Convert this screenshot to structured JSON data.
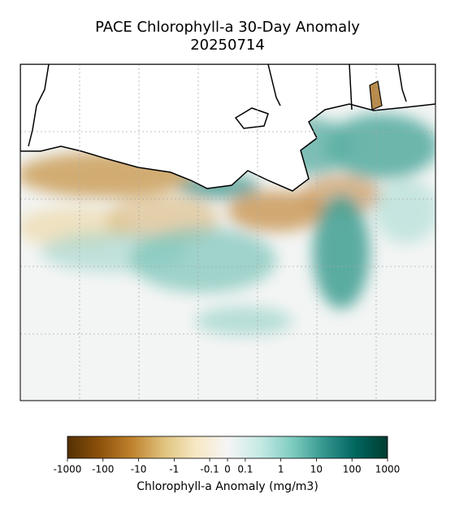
{
  "title": "PACE Chlorophyll-a 30-Day Anomaly",
  "date": "20250714",
  "colorbar": {
    "label": "Chlorophyll-a Anomaly (mg/m3)",
    "scale": "symlog",
    "lim": [
      -1000,
      1000
    ],
    "ticks": [
      -1000,
      -100,
      -10,
      -1,
      -0.1,
      0,
      0.1,
      1,
      10,
      100,
      1000
    ],
    "colors": [
      "#543005",
      "#8c510a",
      "#bf812d",
      "#dfc27d",
      "#f6e8c3",
      "#f5f5f5",
      "#c7eae5",
      "#80cdc1",
      "#35978f",
      "#01665e",
      "#003c30"
    ]
  }
}
